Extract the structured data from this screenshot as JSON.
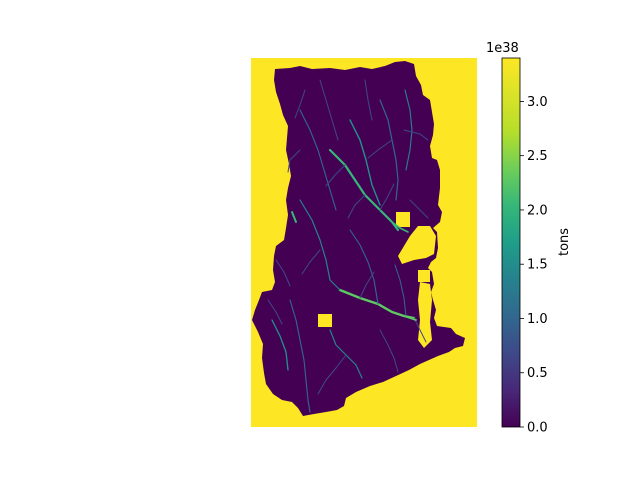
{
  "chart_data": {
    "type": "heatmap",
    "title": "",
    "xlabel": "",
    "ylabel": "",
    "axes_visible": false,
    "colormap": "viridis",
    "description_of_values": {
      "background_outside_basin": "maximum (yellow)",
      "basin_interior": "near zero (dark purple)",
      "stream_network": "low-to-mid values (blue/green/cyan)"
    },
    "colorbar": {
      "label": "tons",
      "exponent_label": "1e38",
      "vmin": 0.0,
      "vmax": 3.4,
      "ticks": [
        0.0,
        0.5,
        1.0,
        1.5,
        2.0,
        2.5,
        3.0
      ],
      "tick_labels": [
        "0.0",
        "0.5",
        "1.0",
        "1.5",
        "2.0",
        "2.5",
        "3.0"
      ]
    },
    "colors": {
      "high": "#fde725",
      "low": "#440154",
      "mid_blue": "#3b528b",
      "mid_teal": "#21918c",
      "mid_green": "#5ec962"
    }
  }
}
